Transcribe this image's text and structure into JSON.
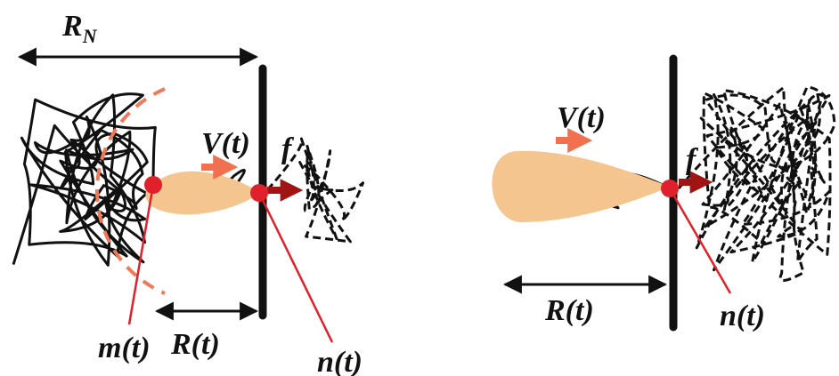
{
  "left_panel": {
    "chain_size": {
      "main": "R",
      "sub": "N"
    },
    "velocity": "V(t)",
    "force": "f",
    "monomer_m": "m(t)",
    "distance": "R(t)",
    "monomer_n": "n(t)"
  },
  "right_panel": {
    "velocity": "V(t)",
    "force": "f",
    "distance": "R(t)",
    "monomer_n": "n(t)"
  }
}
